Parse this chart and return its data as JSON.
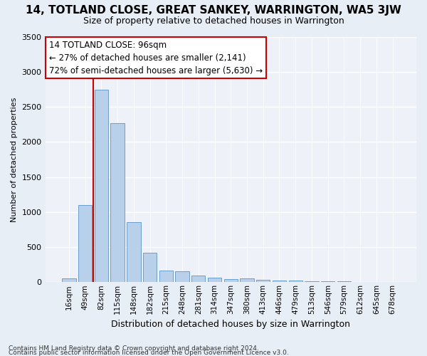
{
  "title": "14, TOTLAND CLOSE, GREAT SANKEY, WARRINGTON, WA5 3JW",
  "subtitle": "Size of property relative to detached houses in Warrington",
  "xlabel": "Distribution of detached houses by size in Warrington",
  "ylabel": "Number of detached properties",
  "bar_categories": [
    "16sqm",
    "49sqm",
    "82sqm",
    "115sqm",
    "148sqm",
    "182sqm",
    "215sqm",
    "248sqm",
    "281sqm",
    "314sqm",
    "347sqm",
    "380sqm",
    "413sqm",
    "446sqm",
    "479sqm",
    "513sqm",
    "546sqm",
    "579sqm",
    "612sqm",
    "645sqm",
    "678sqm"
  ],
  "bar_values": [
    55,
    1100,
    2740,
    2270,
    860,
    415,
    170,
    155,
    90,
    60,
    45,
    55,
    32,
    20,
    18,
    15,
    8,
    8,
    5,
    4,
    3
  ],
  "bar_color": "#b8d0ea",
  "bar_edge_color": "#6aa0cc",
  "vline_color": "#cc0000",
  "annotation_line1": "14 TOTLAND CLOSE: 96sqm",
  "annotation_line2": "← 27% of detached houses are smaller (2,141)",
  "annotation_line3": "72% of semi-detached houses are larger (5,630) →",
  "annotation_box_color": "#ffffff",
  "annotation_box_edge": "#cc0000",
  "ylim": [
    0,
    3500
  ],
  "yticks": [
    0,
    500,
    1000,
    1500,
    2000,
    2500,
    3000,
    3500
  ],
  "footer1": "Contains HM Land Registry data © Crown copyright and database right 2024.",
  "footer2": "Contains public sector information licensed under the Open Government Licence v3.0.",
  "bg_color": "#e8eef6",
  "plot_bg_color": "#eef2f8",
  "grid_color": "#ffffff",
  "title_fontsize": 11,
  "subtitle_fontsize": 9,
  "xlabel_fontsize": 9,
  "ylabel_fontsize": 8,
  "tick_fontsize": 8,
  "xtick_fontsize": 7.5,
  "footer_fontsize": 6.5,
  "annot_fontsize": 8.5
}
